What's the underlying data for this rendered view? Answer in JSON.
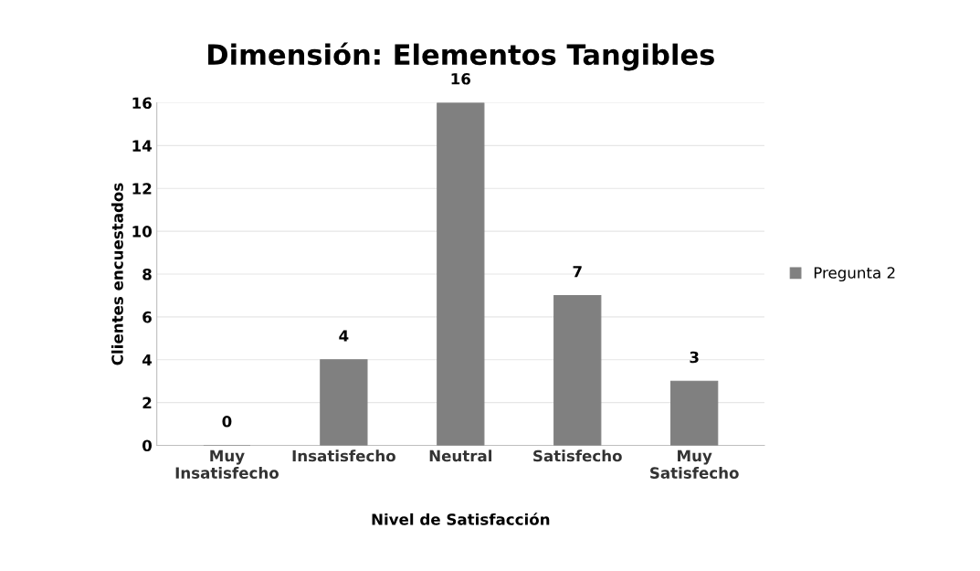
{
  "chart_data": {
    "type": "bar",
    "title": "Dimensión: Elementos Tangibles",
    "xlabel": "Nivel de Satisfacción",
    "ylabel": "Clientes encuestados",
    "categories": [
      "Muy\nInsatisfecho",
      "Insatisfecho",
      "Neutral",
      "Satisfecho",
      "Muy\nSatisfecho"
    ],
    "series": [
      {
        "name": "Pregunta 2",
        "color": "#808080",
        "values": [
          0,
          4,
          16,
          7,
          3
        ]
      }
    ],
    "ylim": [
      0,
      16
    ],
    "yticks": [
      0,
      2,
      4,
      6,
      8,
      10,
      12,
      14,
      16
    ],
    "grid": "y",
    "legend": "right",
    "data_labels": true
  }
}
